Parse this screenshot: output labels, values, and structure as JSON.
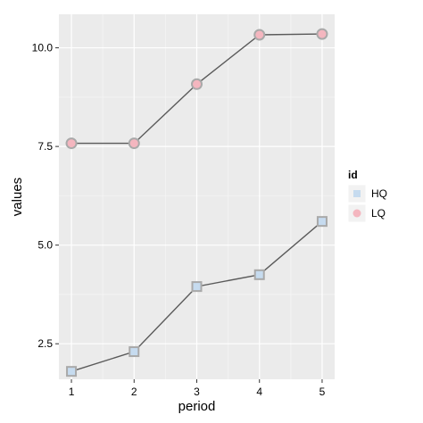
{
  "colors": {
    "panel_background": "#ebebeb",
    "grid_major": "#ffffff",
    "grid_minor": "#f5f5f5",
    "line": "#5a5a5a",
    "point_outline": "#a9a9a9",
    "legend_key_background": "#f2f2f2"
  },
  "chart_data": {
    "type": "line",
    "xlabel": "period",
    "ylabel": "values",
    "xlim": [
      0.8,
      5.2
    ],
    "ylim": [
      1.6,
      10.85
    ],
    "x_ticks": [
      1,
      2,
      3,
      4,
      5
    ],
    "x_tick_labels": [
      "1",
      "2",
      "3",
      "4",
      "5"
    ],
    "y_ticks": [
      2.5,
      5.0,
      7.5,
      10.0
    ],
    "y_tick_labels": [
      "2.5",
      "5.0",
      "7.5",
      "10.0"
    ],
    "grid": true,
    "legend": {
      "title": "id",
      "position": "right"
    },
    "x": [
      1,
      2,
      3,
      4,
      5
    ],
    "series": [
      {
        "name": "HQ",
        "marker": "square",
        "fill": "#c6dbef",
        "values": [
          1.8,
          2.3,
          3.95,
          4.25,
          5.6
        ]
      },
      {
        "name": "LQ",
        "marker": "circle",
        "fill": "#f4b6bf",
        "values": [
          7.58,
          7.58,
          9.08,
          10.33,
          10.35
        ]
      }
    ]
  }
}
